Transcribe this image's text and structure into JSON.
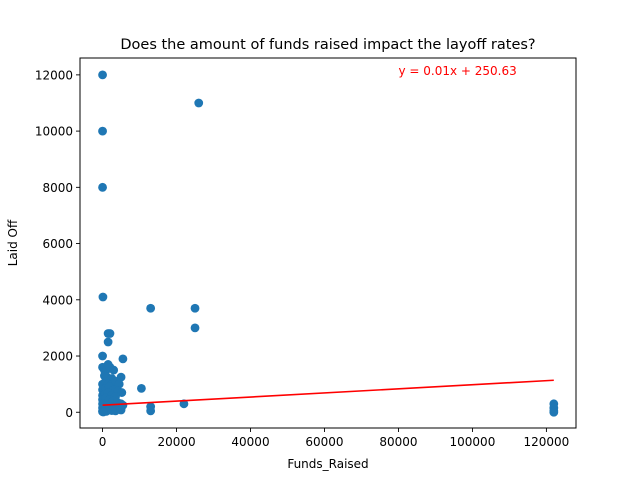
{
  "chart_data": {
    "type": "scatter",
    "title": "Does the amount of funds raised impact the layoff rates?",
    "xlabel": "Funds_Raised",
    "ylabel": "Laid Off",
    "xlim": [
      -6100,
      128000
    ],
    "ylim": [
      -560,
      12600
    ],
    "xticks": [
      0,
      20000,
      40000,
      60000,
      80000,
      100000,
      120000
    ],
    "yticks": [
      0,
      2000,
      4000,
      6000,
      8000,
      10000,
      12000
    ],
    "grid": false,
    "point_color": "#1f77b4",
    "line_color": "#ff0000",
    "series": [
      {
        "points": [
          [
            0,
            12000
          ],
          [
            0,
            10000
          ],
          [
            0,
            8000
          ],
          [
            100,
            4100
          ],
          [
            26000,
            11000
          ],
          [
            13000,
            3700
          ],
          [
            25000,
            3700
          ],
          [
            25000,
            3000
          ],
          [
            1500,
            2800
          ],
          [
            2000,
            2800
          ],
          [
            1500,
            2500
          ],
          [
            0,
            2000
          ],
          [
            5500,
            1900
          ],
          [
            0,
            1600
          ],
          [
            500,
            1500
          ],
          [
            1000,
            1500
          ],
          [
            1500,
            1700
          ],
          [
            2000,
            1600
          ],
          [
            3000,
            1500
          ],
          [
            500,
            1300
          ],
          [
            1200,
            1250
          ],
          [
            2500,
            1200
          ],
          [
            5000,
            1250
          ],
          [
            0,
            1000
          ],
          [
            800,
            1100
          ],
          [
            1500,
            1000
          ],
          [
            2500,
            1000
          ],
          [
            3500,
            1100
          ],
          [
            4500,
            1000
          ],
          [
            0,
            800
          ],
          [
            800,
            850
          ],
          [
            1800,
            900
          ],
          [
            3000,
            800
          ],
          [
            4200,
            750
          ],
          [
            5200,
            700
          ],
          [
            10500,
            850
          ],
          [
            0,
            600
          ],
          [
            700,
            650
          ],
          [
            1500,
            700
          ],
          [
            2500,
            600
          ],
          [
            3500,
            550
          ],
          [
            0,
            450
          ],
          [
            800,
            500
          ],
          [
            1800,
            450
          ],
          [
            2800,
            400
          ],
          [
            4000,
            350
          ],
          [
            5000,
            300
          ],
          [
            5500,
            250
          ],
          [
            0,
            300
          ],
          [
            1000,
            250
          ],
          [
            2000,
            200
          ],
          [
            3000,
            150
          ],
          [
            4500,
            200
          ],
          [
            0,
            150
          ],
          [
            600,
            100
          ],
          [
            1500,
            80
          ],
          [
            2500,
            60
          ],
          [
            3500,
            50
          ],
          [
            5000,
            80
          ],
          [
            0,
            50
          ],
          [
            1000,
            30
          ],
          [
            0,
            20
          ],
          [
            200,
            10
          ],
          [
            13000,
            200
          ],
          [
            13000,
            50
          ],
          [
            22000,
            300
          ],
          [
            122000,
            300
          ],
          [
            122000,
            150
          ],
          [
            122000,
            50
          ],
          [
            122000,
            0
          ]
        ]
      }
    ],
    "regression": {
      "label": "y = 0.01x + 250.63",
      "slope": 0.00728,
      "intercept": 250.63,
      "x_range": [
        0,
        122000
      ],
      "label_at": [
        80000,
        12000
      ]
    }
  }
}
